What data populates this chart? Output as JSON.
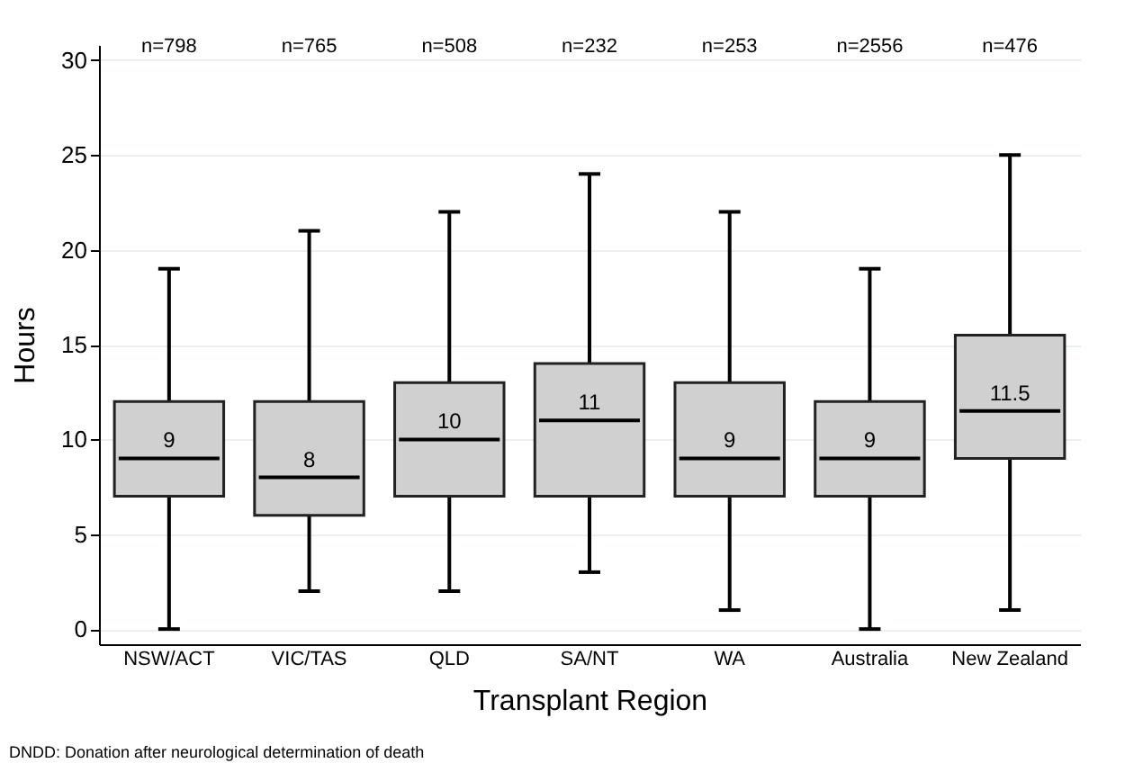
{
  "chart_data": {
    "type": "box",
    "xlabel": "Transplant Region",
    "ylabel": "Hours",
    "categories": [
      "NSW/ACT",
      "VIC/TAS",
      "QLD",
      "SA/NT",
      "WA",
      "Australia",
      "New Zealand"
    ],
    "boxes": [
      {
        "low": 0,
        "q1": 7,
        "median": 9,
        "q3": 12,
        "high": 19
      },
      {
        "low": 2,
        "q1": 6,
        "median": 8,
        "q3": 12,
        "high": 21
      },
      {
        "low": 2,
        "q1": 7,
        "median": 10,
        "q3": 13,
        "high": 22
      },
      {
        "low": 3,
        "q1": 7,
        "median": 11,
        "q3": 14,
        "high": 24
      },
      {
        "low": 1,
        "q1": 7,
        "median": 9,
        "q3": 13,
        "high": 22
      },
      {
        "low": 0,
        "q1": 7,
        "median": 9,
        "q3": 12,
        "high": 19
      },
      {
        "low": 1,
        "q1": 9,
        "median": 11.5,
        "q3": 15.5,
        "high": 25
      }
    ],
    "color": "#d0d0d0",
    "ylim": [
      -0.8,
      30.8
    ],
    "yticks": [
      0,
      5,
      10,
      15,
      20,
      25,
      30
    ],
    "grid": "y",
    "annotations": [
      "n=798",
      "n=765",
      "n=508",
      "n=232",
      "n=253",
      "n=2556",
      "n=476",
      {
        "text": "9",
        "x": "NSW/ACT",
        "y": 9
      },
      {
        "text": "8",
        "x": "VIC/TAS",
        "y": 8
      },
      {
        "text": "10",
        "x": "QLD",
        "y": 10
      },
      {
        "text": "11",
        "x": "SA/NT",
        "y": 11
      },
      {
        "text": "9",
        "x": "WA",
        "y": 9
      },
      {
        "text": "9",
        "x": "Australia",
        "y": 9
      },
      {
        "text": "11.5",
        "x": "New Zealand",
        "y": 11.5
      },
      "DNDD: Donation after neurological determination of death"
    ]
  }
}
